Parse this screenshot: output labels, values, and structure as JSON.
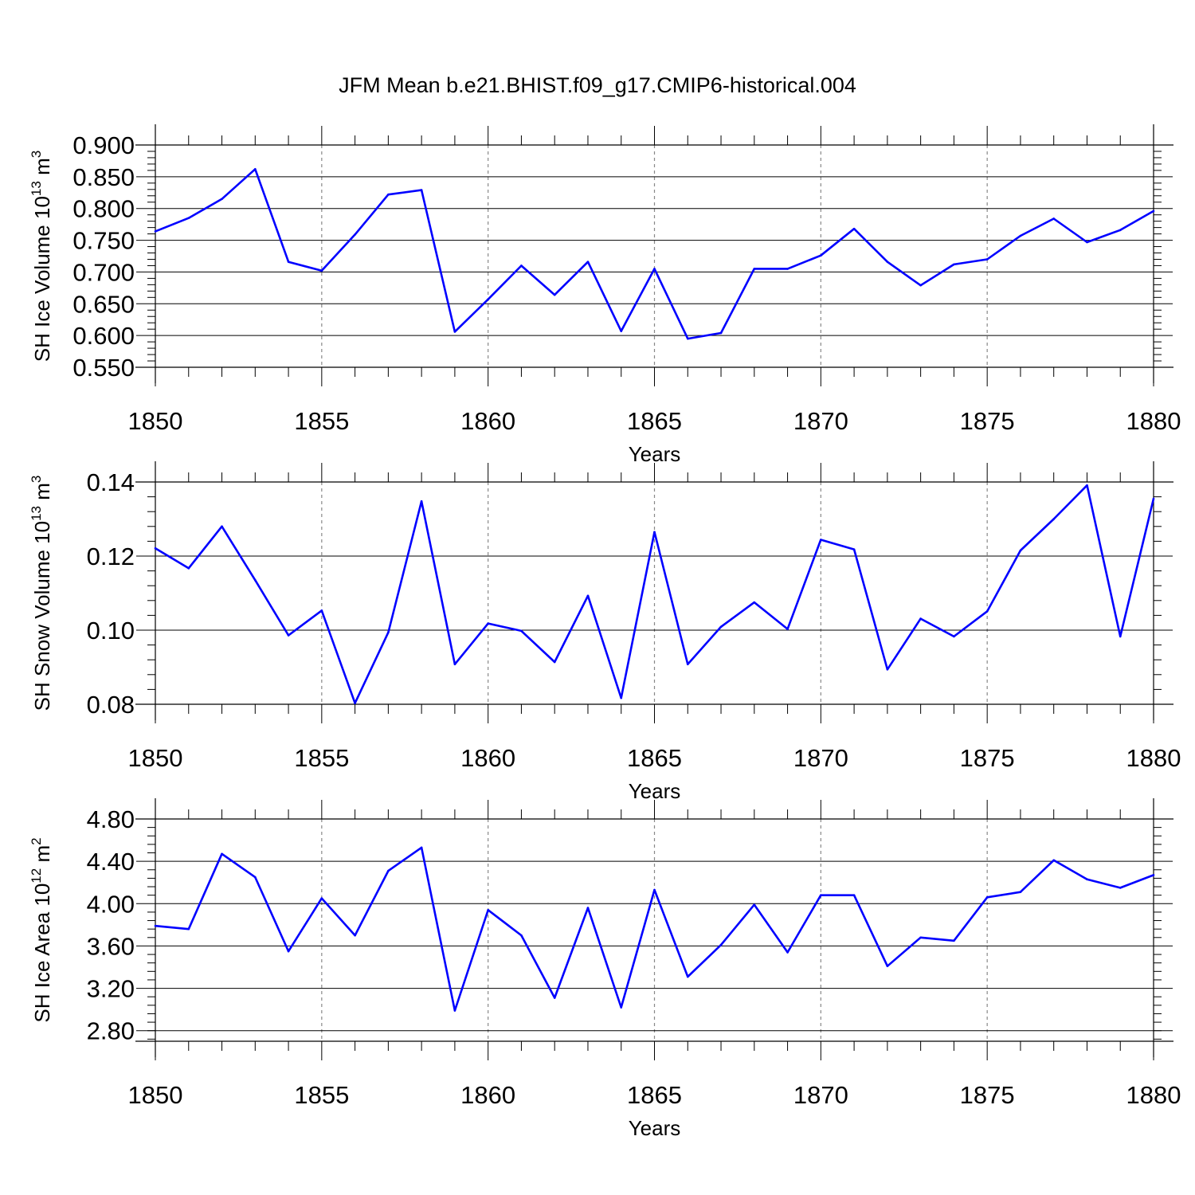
{
  "figure": {
    "title": "JFM Mean b.e21.BHIST.f09_g17.CMIP6-historical.004"
  },
  "chart_data": [
    {
      "type": "line",
      "panel": "ice-volume",
      "ylabel": "SH Ice Volume",
      "ylabel_unit_base": "10",
      "ylabel_unit_exp": "13",
      "ylabel_unit_main": " m",
      "ylabel_unit_sup": "3",
      "xlabel": "Years",
      "xlim": [
        1850,
        1880
      ],
      "ylim": [
        0.55,
        0.9
      ],
      "yticks": [
        0.55,
        0.6,
        0.65,
        0.7,
        0.75,
        0.8,
        0.85,
        0.9
      ],
      "ytick_labels": [
        "0.550",
        "0.600",
        "0.650",
        "0.700",
        "0.750",
        "0.800",
        "0.850",
        "0.900"
      ],
      "xticks": [
        1850,
        1855,
        1860,
        1865,
        1870,
        1875,
        1880
      ],
      "xtick_labels": [
        "1850",
        "1855",
        "1860",
        "1865",
        "1870",
        "1875",
        "1880"
      ],
      "x": [
        1850,
        1851,
        1852,
        1853,
        1854,
        1855,
        1856,
        1857,
        1858,
        1859,
        1860,
        1861,
        1862,
        1863,
        1864,
        1865,
        1866,
        1867,
        1868,
        1869,
        1870,
        1871,
        1872,
        1873,
        1874,
        1875,
        1876,
        1877,
        1878,
        1879,
        1880
      ],
      "series": [
        {
          "name": "SH Ice Volume",
          "color": "#0000ff",
          "values": [
            0.764,
            0.785,
            0.815,
            0.862,
            0.716,
            0.702,
            0.759,
            0.822,
            0.829,
            0.606,
            0.657,
            0.71,
            0.664,
            0.716,
            0.607,
            0.705,
            0.595,
            0.604,
            0.705,
            0.705,
            0.726,
            0.768,
            0.716,
            0.679,
            0.712,
            0.72,
            0.757,
            0.784,
            0.747,
            0.766,
            0.796
          ]
        }
      ]
    },
    {
      "type": "line",
      "panel": "snow-volume",
      "ylabel": "SH Snow Volume",
      "ylabel_unit_base": "10",
      "ylabel_unit_exp": "13",
      "ylabel_unit_main": " m",
      "ylabel_unit_sup": "3",
      "xlabel": "Years",
      "xlim": [
        1850,
        1880
      ],
      "ylim": [
        0.08,
        0.14
      ],
      "yticks": [
        0.08,
        0.1,
        0.12,
        0.14
      ],
      "ytick_labels": [
        "0.08",
        "0.10",
        "0.12",
        "0.14"
      ],
      "xticks": [
        1850,
        1855,
        1860,
        1865,
        1870,
        1875,
        1880
      ],
      "xtick_labels": [
        "1850",
        "1855",
        "1860",
        "1865",
        "1870",
        "1875",
        "1880"
      ],
      "x": [
        1850,
        1851,
        1852,
        1853,
        1854,
        1855,
        1856,
        1857,
        1858,
        1859,
        1860,
        1861,
        1862,
        1863,
        1864,
        1865,
        1866,
        1867,
        1868,
        1869,
        1870,
        1871,
        1872,
        1873,
        1874,
        1875,
        1876,
        1877,
        1878,
        1879,
        1880
      ],
      "series": [
        {
          "name": "SH Snow Volume",
          "color": "#0000ff",
          "values": [
            0.1221,
            0.1167,
            0.128,
            0.1135,
            0.0986,
            0.1053,
            0.0803,
            0.0994,
            0.1348,
            0.0908,
            0.1018,
            0.0998,
            0.0914,
            0.1093,
            0.0817,
            0.1265,
            0.0908,
            0.1009,
            0.1075,
            0.1003,
            0.1244,
            0.1218,
            0.0894,
            0.1031,
            0.0983,
            0.1051,
            0.1215,
            0.13,
            0.1391,
            0.0983,
            0.1355
          ]
        }
      ]
    },
    {
      "type": "line",
      "panel": "ice-area",
      "ylabel": "SH Ice Area",
      "ylabel_unit_base": "10",
      "ylabel_unit_exp": "12",
      "ylabel_unit_main": " m",
      "ylabel_unit_sup": "2",
      "xlabel": "Years",
      "xlim": [
        1850,
        1880
      ],
      "ylim": [
        2.7,
        4.8
      ],
      "yticks": [
        2.8,
        3.2,
        3.6,
        4.0,
        4.4,
        4.8
      ],
      "ytick_labels": [
        "2.80",
        "3.20",
        "3.60",
        "4.00",
        "4.40",
        "4.80"
      ],
      "xticks": [
        1850,
        1855,
        1860,
        1865,
        1870,
        1875,
        1880
      ],
      "xtick_labels": [
        "1850",
        "1855",
        "1860",
        "1865",
        "1870",
        "1875",
        "1880"
      ],
      "x": [
        1850,
        1851,
        1852,
        1853,
        1854,
        1855,
        1856,
        1857,
        1858,
        1859,
        1860,
        1861,
        1862,
        1863,
        1864,
        1865,
        1866,
        1867,
        1868,
        1869,
        1870,
        1871,
        1872,
        1873,
        1874,
        1875,
        1876,
        1877,
        1878,
        1879,
        1880
      ],
      "series": [
        {
          "name": "SH Ice Area",
          "color": "#0000ff",
          "values": [
            3.79,
            3.76,
            4.47,
            4.25,
            3.55,
            4.05,
            3.7,
            4.31,
            4.53,
            2.99,
            3.94,
            3.7,
            3.11,
            3.96,
            3.02,
            4.13,
            3.31,
            3.61,
            3.99,
            3.54,
            4.08,
            4.08,
            3.41,
            3.68,
            3.65,
            4.06,
            4.11,
            4.41,
            4.23,
            4.15,
            4.27
          ]
        }
      ]
    }
  ]
}
